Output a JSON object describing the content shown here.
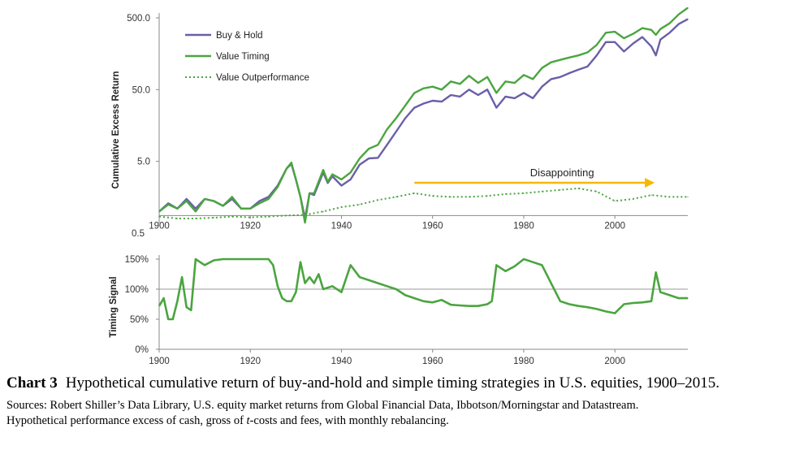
{
  "chart_data": [
    {
      "type": "line",
      "ylabel": "Cumulative Excess Return",
      "yscale": "log",
      "ylim": [
        0.5,
        500
      ],
      "xlim": [
        1900,
        2016
      ],
      "x_ticks": [
        1900,
        1920,
        1940,
        1960,
        1980,
        2000
      ],
      "y_ticks": [
        0.5,
        5,
        50,
        500
      ],
      "y_tick_labels": [
        "0.5",
        "5.0",
        "50.0",
        "500.0"
      ],
      "grid": false,
      "legend_position": "top-left",
      "series": [
        {
          "name": "Buy & Hold",
          "color": "#6a5fa8",
          "style": "solid",
          "x": [
            1900,
            1902,
            1904,
            1906,
            1908,
            1910,
            1912,
            1914,
            1916,
            1918,
            1920,
            1922,
            1924,
            1926,
            1928,
            1929,
            1930,
            1931,
            1932,
            1933,
            1934,
            1936,
            1937,
            1938,
            1940,
            1942,
            1944,
            1946,
            1948,
            1950,
            1952,
            1954,
            1956,
            1958,
            1960,
            1962,
            1964,
            1966,
            1968,
            1970,
            1972,
            1974,
            1976,
            1978,
            1980,
            1982,
            1984,
            1986,
            1988,
            1990,
            1992,
            1994,
            1996,
            1998,
            2000,
            2002,
            2004,
            2006,
            2008,
            2009,
            2010,
            2012,
            2014,
            2016
          ],
          "y": [
            1.0,
            1.3,
            1.1,
            1.5,
            1.1,
            1.5,
            1.4,
            1.2,
            1.5,
            1.1,
            1.1,
            1.4,
            1.6,
            2.3,
            4.0,
            4.6,
            2.8,
            1.6,
            0.8,
            1.8,
            1.7,
            3.5,
            2.5,
            3.1,
            2.3,
            2.8,
            4.5,
            5.5,
            5.6,
            8.5,
            13,
            20,
            28,
            32,
            35,
            34,
            42,
            40,
            50,
            42,
            50,
            28,
            40,
            38,
            45,
            38,
            55,
            70,
            75,
            85,
            95,
            105,
            150,
            230,
            230,
            170,
            220,
            270,
            200,
            150,
            250,
            310,
            410,
            480
          ]
        },
        {
          "name": "Value Timing",
          "color": "#4aa53f",
          "style": "solid",
          "x": [
            1900,
            1902,
            1904,
            1906,
            1908,
            1910,
            1912,
            1914,
            1916,
            1918,
            1920,
            1922,
            1924,
            1926,
            1928,
            1929,
            1930,
            1931,
            1932,
            1933,
            1934,
            1936,
            1937,
            1938,
            1940,
            1942,
            1944,
            1946,
            1948,
            1950,
            1952,
            1954,
            1956,
            1958,
            1960,
            1962,
            1964,
            1966,
            1968,
            1970,
            1972,
            1974,
            1976,
            1978,
            1980,
            1982,
            1984,
            1986,
            1988,
            1990,
            1992,
            1994,
            1996,
            1998,
            2000,
            2002,
            2004,
            2006,
            2008,
            2009,
            2010,
            2012,
            2014,
            2016
          ],
          "y": [
            1.0,
            1.25,
            1.1,
            1.4,
            1.0,
            1.5,
            1.4,
            1.2,
            1.6,
            1.1,
            1.1,
            1.3,
            1.5,
            2.2,
            4.0,
            4.8,
            2.8,
            1.6,
            0.7,
            1.8,
            1.8,
            3.8,
            2.6,
            3.3,
            2.8,
            3.5,
            5.5,
            7.5,
            8.5,
            14,
            20,
            30,
            45,
            52,
            55,
            50,
            65,
            60,
            78,
            62,
            75,
            45,
            65,
            62,
            80,
            70,
            100,
            120,
            130,
            140,
            150,
            165,
            210,
            310,
            320,
            260,
            300,
            360,
            340,
            290,
            350,
            420,
            560,
            690
          ]
        },
        {
          "name": "Value Outperformance",
          "color": "#4aa53f",
          "style": "dotted",
          "x": [
            1900,
            1904,
            1908,
            1912,
            1916,
            1920,
            1924,
            1928,
            1932,
            1936,
            1940,
            1944,
            1948,
            1952,
            1956,
            1960,
            1964,
            1968,
            1972,
            1976,
            1980,
            1984,
            1988,
            1992,
            1996,
            2000,
            2004,
            2008,
            2012,
            2016
          ],
          "y": [
            0.85,
            0.8,
            0.8,
            0.82,
            0.85,
            0.83,
            0.85,
            0.88,
            0.9,
            1.0,
            1.15,
            1.25,
            1.45,
            1.6,
            1.8,
            1.65,
            1.6,
            1.6,
            1.65,
            1.75,
            1.8,
            1.9,
            2.0,
            2.1,
            1.9,
            1.4,
            1.5,
            1.7,
            1.6,
            1.6
          ]
        }
      ],
      "annotations": [
        {
          "text": "Disappointing",
          "x_start": 1956,
          "x_end": 2008,
          "y": 1.8,
          "color": "#f5b800"
        }
      ]
    },
    {
      "type": "line",
      "ylabel": "Timing Signal",
      "ylim": [
        0,
        150
      ],
      "xlim": [
        1900,
        2016
      ],
      "x_ticks": [
        1900,
        1920,
        1940,
        1960,
        1980,
        2000
      ],
      "y_ticks": [
        0,
        50,
        100,
        150
      ],
      "y_tick_labels": [
        "0%",
        "50%",
        "100%",
        "150%"
      ],
      "reference_line": 100,
      "series": [
        {
          "name": "Timing Signal",
          "color": "#4aa53f",
          "x": [
            1900,
            1901,
            1902,
            1903,
            1904,
            1905,
            1906,
            1907,
            1908,
            1910,
            1912,
            1914,
            1916,
            1918,
            1920,
            1922,
            1924,
            1925,
            1926,
            1927,
            1928,
            1929,
            1930,
            1931,
            1932,
            1933,
            1934,
            1935,
            1936,
            1938,
            1940,
            1942,
            1944,
            1946,
            1948,
            1950,
            1952,
            1954,
            1956,
            1958,
            1960,
            1962,
            1964,
            1966,
            1968,
            1970,
            1972,
            1973,
            1974,
            1976,
            1978,
            1980,
            1982,
            1984,
            1986,
            1988,
            1990,
            1992,
            1994,
            1996,
            1998,
            2000,
            2002,
            2004,
            2006,
            2008,
            2009,
            2010,
            2012,
            2014,
            2016
          ],
          "y": [
            72,
            85,
            50,
            50,
            80,
            120,
            70,
            65,
            150,
            140,
            148,
            150,
            150,
            150,
            150,
            150,
            150,
            140,
            105,
            85,
            80,
            80,
            95,
            145,
            110,
            120,
            110,
            125,
            100,
            105,
            95,
            140,
            120,
            115,
            110,
            105,
            100,
            90,
            85,
            80,
            78,
            82,
            74,
            73,
            72,
            72,
            75,
            80,
            140,
            130,
            138,
            150,
            145,
            140,
            110,
            80,
            75,
            72,
            70,
            67,
            63,
            60,
            75,
            77,
            78,
            80,
            128,
            95,
            90,
            85,
            85
          ]
        }
      ]
    }
  ],
  "caption": {
    "label": "Chart 3",
    "title": "Hypothetical cumulative return of buy-and-hold and simple timing strategies in U.S. equities, 1900–2015.",
    "sources_line1": "Sources: Robert Shiller’s Data Library, U.S. equity market returns from Global Financial Data, Ibbotson/Morningstar and Datastream.",
    "sources_line2_pre": "Hypothetical performance excess of cash, gross of ",
    "sources_line2_em": "t",
    "sources_line2_post": "-costs and fees, with monthly rebalancing."
  }
}
